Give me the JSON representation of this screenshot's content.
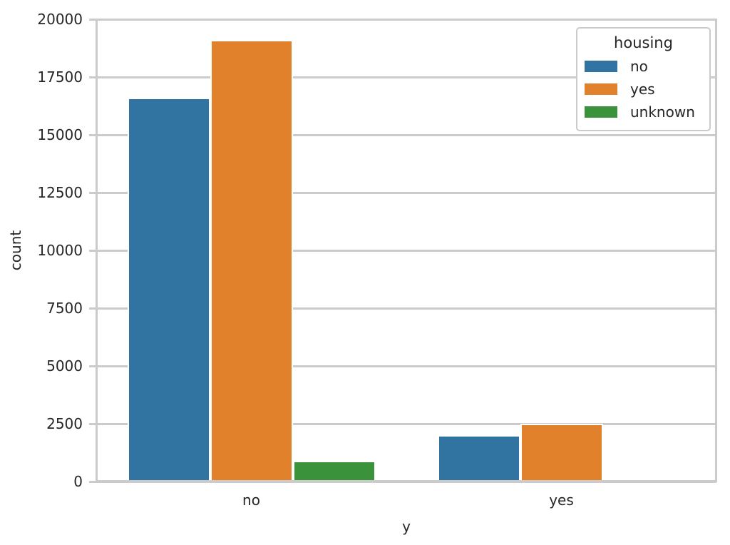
{
  "figure": {
    "background": "#ffffff",
    "text_color": "#262626",
    "grid_color": "#cbcbcb"
  },
  "chart_data": {
    "type": "bar",
    "title": "",
    "xlabel": "y",
    "ylabel": "count",
    "categories": [
      "no",
      "yes"
    ],
    "series": [
      {
        "name": "no",
        "color": "#3274A1",
        "values": [
          16600,
          2000
        ]
      },
      {
        "name": "yes",
        "color": "#E1812C",
        "values": [
          19100,
          2500
        ]
      },
      {
        "name": "unknown",
        "color": "#3A923A",
        "values": [
          900,
          100
        ]
      }
    ],
    "ylim": [
      0,
      20000
    ],
    "yticks": [
      0,
      2500,
      5000,
      7500,
      10000,
      12500,
      15000,
      17500,
      20000
    ],
    "grid": "horizontal-gridlines-on",
    "legend": {
      "title": "housing",
      "position": "upper-right"
    }
  }
}
